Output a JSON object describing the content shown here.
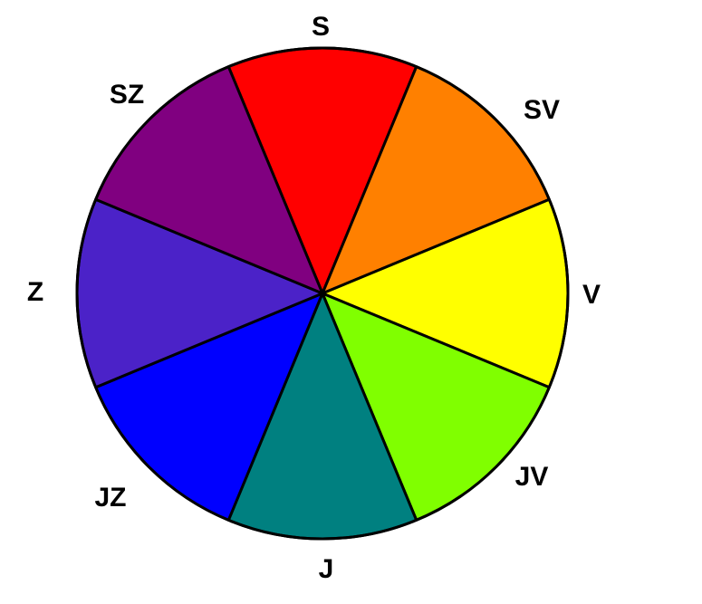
{
  "compass_wheel": {
    "sectors": [
      {
        "label": "S",
        "color": "#ff0000"
      },
      {
        "label": "SV",
        "color": "#ff8000"
      },
      {
        "label": "V",
        "color": "#ffff00"
      },
      {
        "label": "JV",
        "color": "#80ff00"
      },
      {
        "label": "J",
        "color": "#008080"
      },
      {
        "label": "JZ",
        "color": "#0000ff"
      },
      {
        "label": "Z",
        "color": "#4b22c8"
      },
      {
        "label": "SZ",
        "color": "#800080"
      }
    ],
    "outline_color": "#000000"
  }
}
